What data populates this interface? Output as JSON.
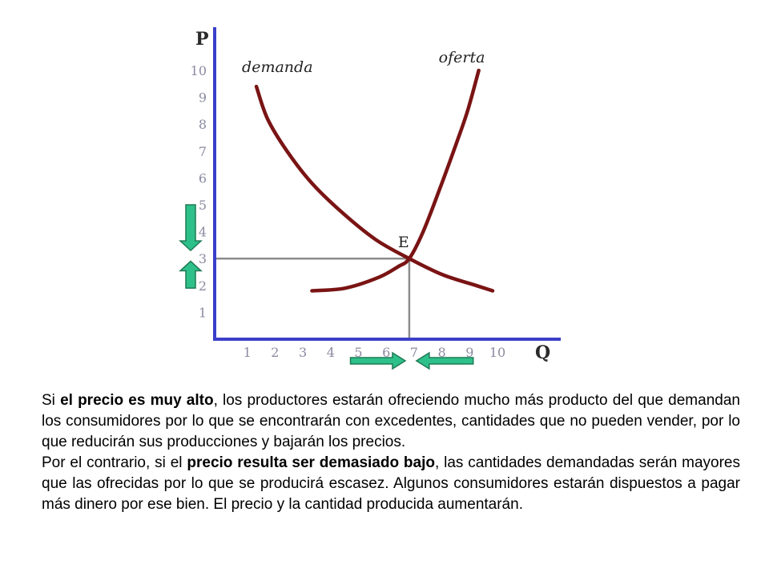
{
  "chart_data": {
    "type": "line",
    "xlabel": "Q",
    "ylabel": "P",
    "x_ticks": [
      "1",
      "2",
      "3",
      "4",
      "5",
      "6",
      "7",
      "8",
      "9",
      "10"
    ],
    "y_ticks": [
      "1",
      "2",
      "3",
      "4",
      "5",
      "6",
      "7",
      "8",
      "9",
      "10"
    ],
    "xlim": [
      0,
      10.5
    ],
    "ylim": [
      0,
      11
    ],
    "series": [
      {
        "name": "demanda",
        "color": "#7a1414",
        "points": [
          [
            1.5,
            9.4
          ],
          [
            1.9,
            8.2
          ],
          [
            2.6,
            7.0
          ],
          [
            3.5,
            5.8
          ],
          [
            4.6,
            4.7
          ],
          [
            5.8,
            3.7
          ],
          [
            7.0,
            3.0
          ],
          [
            8.2,
            2.4
          ],
          [
            9.4,
            2.0
          ],
          [
            10.0,
            1.8
          ]
        ]
      },
      {
        "name": "oferta",
        "color": "#7a1414",
        "points": [
          [
            3.5,
            1.8
          ],
          [
            4.7,
            1.9
          ],
          [
            5.9,
            2.3
          ],
          [
            6.6,
            2.7
          ],
          [
            7.0,
            3.0
          ],
          [
            7.5,
            4.0
          ],
          [
            8.1,
            5.6
          ],
          [
            8.7,
            7.3
          ],
          [
            9.1,
            8.5
          ],
          [
            9.5,
            10.0
          ]
        ]
      }
    ],
    "equilibrium": {
      "label": "E",
      "x": 7,
      "y": 3,
      "line_color": "#8c8c8c"
    },
    "axis_color": "#3a3fc8",
    "arrow_color": "#2ec08a",
    "arrows": {
      "price_from_above": {
        "axis": "y",
        "direction": "down",
        "from": 5.0,
        "to": 3.3
      },
      "price_from_below": {
        "axis": "y",
        "direction": "up",
        "from": 1.9,
        "to": 2.9
      },
      "quantity_from_left": {
        "axis": "x",
        "direction": "right",
        "from": 5.0,
        "to": 6.8
      },
      "quantity_from_right": {
        "axis": "x",
        "direction": "left",
        "from": 9.3,
        "to": 7.2
      }
    }
  },
  "text": {
    "p1": {
      "a": "Si ",
      "b": "el precio es muy alto",
      "c": ", los productores estarán ofreciendo mucho más producto del que demandan los consumidores por lo que se encontrarán con excedentes, cantidades que no pueden vender, por lo que reducirán sus producciones y bajarán los precios."
    },
    "p2": {
      "a": "Por el contrario, si el ",
      "b": "precio resulta ser demasiado bajo",
      "c": ", las cantidades demandadas serán mayores que las ofrecidas por lo que se producirá escasez. Algunos consumidores estarán dispuestos a pagar más dinero por ese bien. El precio y la cantidad producida aumentarán."
    }
  }
}
